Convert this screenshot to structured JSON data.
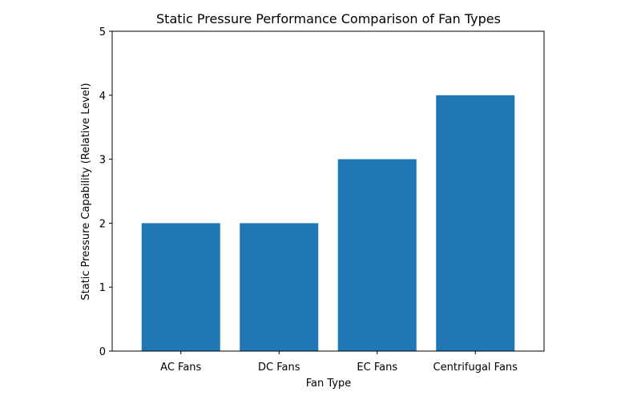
{
  "chart_data": {
    "type": "bar",
    "title": "Static Pressure Performance Comparison of Fan Types",
    "xlabel": "Fan Type",
    "ylabel": "Static Pressure Capability (Relative Level)",
    "categories": [
      "AC Fans",
      "DC Fans",
      "EC Fans",
      "Centrifugal Fans"
    ],
    "values": [
      2,
      2,
      3,
      4
    ],
    "ylim": [
      0,
      5
    ],
    "yticks": [
      "0",
      "1",
      "2",
      "3",
      "4",
      "5"
    ],
    "grid": false,
    "legend": "none",
    "bar_color": "#1f77b4"
  }
}
